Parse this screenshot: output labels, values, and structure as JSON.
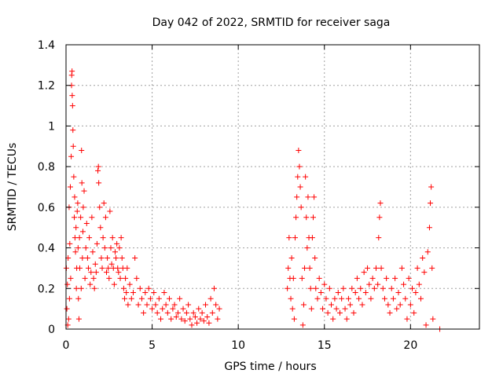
{
  "chart_data": {
    "type": "scatter",
    "title": "Day 042 of 2022, SRMTID for receiver saga",
    "xlabel": "GPS time / hours",
    "ylabel": "SRMTID / TECUs",
    "xlim": [
      0,
      24
    ],
    "ylim": [
      0,
      1.4
    ],
    "x_ticks": [
      0,
      5,
      10,
      15,
      20
    ],
    "x_tick_labels": [
      "0",
      "5",
      "10",
      "15",
      "20"
    ],
    "y_ticks": [
      0,
      0.2,
      0.4,
      0.6,
      0.8,
      1.0,
      1.2,
      1.4
    ],
    "y_tick_labels": [
      "0",
      "0.2",
      "0.4",
      "0.6",
      "0.8",
      "1",
      "1.2",
      "1.4"
    ],
    "grid": true,
    "marker": "+",
    "series": [
      {
        "name": "SRMTID",
        "color": "#ff0000",
        "points": [
          [
            0.02,
            0.3
          ],
          [
            0.05,
            0.1
          ],
          [
            0.08,
            0.22
          ],
          [
            0.1,
            0.02
          ],
          [
            0.12,
            0.35
          ],
          [
            0.15,
            0.05
          ],
          [
            0.18,
            0.6
          ],
          [
            0.2,
            0.15
          ],
          [
            0.22,
            0.42
          ],
          [
            0.25,
            0.7
          ],
          [
            0.27,
            0.25
          ],
          [
            0.3,
            0.85
          ],
          [
            0.32,
            1.2
          ],
          [
            0.33,
            1.25
          ],
          [
            0.35,
            1.27
          ],
          [
            0.36,
            1.15
          ],
          [
            0.38,
            1.1
          ],
          [
            0.4,
            0.98
          ],
          [
            0.42,
            0.9
          ],
          [
            0.45,
            0.75
          ],
          [
            0.48,
            0.55
          ],
          [
            0.5,
            0.65
          ],
          [
            0.52,
            0.45
          ],
          [
            0.55,
            0.38
          ],
          [
            0.58,
            0.5
          ],
          [
            0.6,
            0.2
          ],
          [
            0.62,
            0.3
          ],
          [
            0.65,
            0.58
          ],
          [
            0.68,
            0.62
          ],
          [
            0.7,
            0.4
          ],
          [
            0.72,
            0.15
          ],
          [
            0.75,
            0.05
          ],
          [
            0.78,
            0.45
          ],
          [
            0.8,
            0.3
          ],
          [
            0.85,
            0.55
          ],
          [
            0.88,
            0.2
          ],
          [
            0.9,
            0.88
          ],
          [
            0.92,
            0.72
          ],
          [
            0.95,
            0.35
          ],
          [
            0.98,
            0.48
          ],
          [
            1.0,
            0.6
          ],
          [
            1.05,
            0.68
          ],
          [
            1.1,
            0.25
          ],
          [
            1.15,
            0.4
          ],
          [
            1.2,
            0.52
          ],
          [
            1.25,
            0.35
          ],
          [
            1.3,
            0.3
          ],
          [
            1.35,
            0.45
          ],
          [
            1.4,
            0.22
          ],
          [
            1.45,
            0.28
          ],
          [
            1.5,
            0.55
          ],
          [
            1.55,
            0.38
          ],
          [
            1.6,
            0.25
          ],
          [
            1.65,
            0.2
          ],
          [
            1.7,
            0.32
          ],
          [
            1.75,
            0.28
          ],
          [
            1.8,
            0.42
          ],
          [
            1.85,
            0.78
          ],
          [
            1.88,
            0.8
          ],
          [
            1.9,
            0.72
          ],
          [
            1.95,
            0.6
          ],
          [
            2.0,
            0.5
          ],
          [
            2.05,
            0.35
          ],
          [
            2.1,
            0.3
          ],
          [
            2.15,
            0.45
          ],
          [
            2.2,
            0.62
          ],
          [
            2.25,
            0.4
          ],
          [
            2.3,
            0.55
          ],
          [
            2.35,
            0.28
          ],
          [
            2.4,
            0.35
          ],
          [
            2.45,
            0.3
          ],
          [
            2.5,
            0.25
          ],
          [
            2.55,
            0.58
          ],
          [
            2.6,
            0.4
          ],
          [
            2.65,
            0.32
          ],
          [
            2.7,
            0.45
          ],
          [
            2.75,
            0.3
          ],
          [
            2.8,
            0.22
          ],
          [
            2.85,
            0.38
          ],
          [
            2.9,
            0.35
          ],
          [
            2.95,
            0.42
          ],
          [
            3.0,
            0.3
          ],
          [
            3.05,
            0.28
          ],
          [
            3.1,
            0.4
          ],
          [
            3.15,
            0.25
          ],
          [
            3.2,
            0.45
          ],
          [
            3.25,
            0.35
          ],
          [
            3.3,
            0.3
          ],
          [
            3.35,
            0.2
          ],
          [
            3.4,
            0.15
          ],
          [
            3.45,
            0.25
          ],
          [
            3.5,
            0.18
          ],
          [
            3.55,
            0.3
          ],
          [
            3.6,
            0.12
          ],
          [
            3.7,
            0.22
          ],
          [
            3.8,
            0.15
          ],
          [
            3.9,
            0.18
          ],
          [
            4.0,
            0.35
          ],
          [
            4.1,
            0.25
          ],
          [
            4.2,
            0.12
          ],
          [
            4.3,
            0.2
          ],
          [
            4.4,
            0.15
          ],
          [
            4.5,
            0.08
          ],
          [
            4.6,
            0.18
          ],
          [
            4.7,
            0.12
          ],
          [
            4.8,
            0.2
          ],
          [
            4.9,
            0.15
          ],
          [
            5.0,
            0.1
          ],
          [
            5.1,
            0.18
          ],
          [
            5.2,
            0.12
          ],
          [
            5.3,
            0.08
          ],
          [
            5.4,
            0.15
          ],
          [
            5.5,
            0.05
          ],
          [
            5.6,
            0.1
          ],
          [
            5.7,
            0.18
          ],
          [
            5.8,
            0.12
          ],
          [
            5.9,
            0.08
          ],
          [
            6.0,
            0.15
          ],
          [
            6.1,
            0.05
          ],
          [
            6.2,
            0.1
          ],
          [
            6.3,
            0.12
          ],
          [
            6.4,
            0.06
          ],
          [
            6.5,
            0.08
          ],
          [
            6.6,
            0.15
          ],
          [
            6.7,
            0.05
          ],
          [
            6.8,
            0.1
          ],
          [
            6.9,
            0.04
          ],
          [
            7.0,
            0.08
          ],
          [
            7.1,
            0.12
          ],
          [
            7.2,
            0.05
          ],
          [
            7.3,
            0.02
          ],
          [
            7.4,
            0.08
          ],
          [
            7.5,
            0.06
          ],
          [
            7.6,
            0.03
          ],
          [
            7.7,
            0.1
          ],
          [
            7.8,
            0.05
          ],
          [
            7.9,
            0.08
          ],
          [
            8.0,
            0.04
          ],
          [
            8.1,
            0.12
          ],
          [
            8.2,
            0.06
          ],
          [
            8.3,
            0.03
          ],
          [
            8.4,
            0.15
          ],
          [
            8.5,
            0.08
          ],
          [
            8.6,
            0.2
          ],
          [
            8.7,
            0.12
          ],
          [
            8.8,
            0.05
          ],
          [
            8.9,
            0.1
          ],
          [
            12.85,
            0.2
          ],
          [
            12.9,
            0.3
          ],
          [
            12.95,
            0.45
          ],
          [
            13.0,
            0.25
          ],
          [
            13.05,
            0.15
          ],
          [
            13.1,
            0.35
          ],
          [
            13.15,
            0.1
          ],
          [
            13.2,
            0.25
          ],
          [
            13.25,
            0.05
          ],
          [
            13.3,
            0.45
          ],
          [
            13.35,
            0.55
          ],
          [
            13.4,
            0.65
          ],
          [
            13.45,
            0.75
          ],
          [
            13.5,
            0.88
          ],
          [
            13.55,
            0.8
          ],
          [
            13.6,
            0.7
          ],
          [
            13.65,
            0.6
          ],
          [
            13.7,
            0.25
          ],
          [
            13.75,
            0.02
          ],
          [
            13.8,
            0.12
          ],
          [
            13.85,
            0.3
          ],
          [
            13.9,
            0.75
          ],
          [
            13.95,
            0.55
          ],
          [
            14.0,
            0.4
          ],
          [
            14.05,
            0.65
          ],
          [
            14.1,
            0.45
          ],
          [
            14.15,
            0.3
          ],
          [
            14.2,
            0.2
          ],
          [
            14.25,
            0.1
          ],
          [
            14.3,
            0.45
          ],
          [
            14.35,
            0.55
          ],
          [
            14.4,
            0.65
          ],
          [
            14.45,
            0.35
          ],
          [
            14.5,
            0.2
          ],
          [
            14.6,
            0.15
          ],
          [
            14.7,
            0.25
          ],
          [
            14.8,
            0.18
          ],
          [
            14.9,
            0.1
          ],
          [
            15.0,
            0.22
          ],
          [
            15.1,
            0.15
          ],
          [
            15.2,
            0.08
          ],
          [
            15.3,
            0.2
          ],
          [
            15.4,
            0.12
          ],
          [
            15.5,
            0.05
          ],
          [
            15.6,
            0.15
          ],
          [
            15.7,
            0.1
          ],
          [
            15.8,
            0.18
          ],
          [
            15.9,
            0.08
          ],
          [
            16.0,
            0.15
          ],
          [
            16.1,
            0.2
          ],
          [
            16.2,
            0.1
          ],
          [
            16.3,
            0.05
          ],
          [
            16.4,
            0.15
          ],
          [
            16.5,
            0.12
          ],
          [
            16.6,
            0.2
          ],
          [
            16.7,
            0.08
          ],
          [
            16.8,
            0.18
          ],
          [
            16.9,
            0.25
          ],
          [
            17.0,
            0.15
          ],
          [
            17.1,
            0.2
          ],
          [
            17.2,
            0.12
          ],
          [
            17.3,
            0.28
          ],
          [
            17.4,
            0.18
          ],
          [
            17.5,
            0.3
          ],
          [
            17.6,
            0.22
          ],
          [
            17.7,
            0.15
          ],
          [
            17.8,
            0.25
          ],
          [
            17.9,
            0.2
          ],
          [
            18.0,
            0.3
          ],
          [
            18.1,
            0.22
          ],
          [
            18.15,
            0.45
          ],
          [
            18.2,
            0.55
          ],
          [
            18.25,
            0.62
          ],
          [
            18.3,
            0.3
          ],
          [
            18.4,
            0.2
          ],
          [
            18.5,
            0.15
          ],
          [
            18.6,
            0.25
          ],
          [
            18.7,
            0.12
          ],
          [
            18.8,
            0.08
          ],
          [
            18.9,
            0.2
          ],
          [
            19.0,
            0.15
          ],
          [
            19.1,
            0.25
          ],
          [
            19.2,
            0.1
          ],
          [
            19.3,
            0.18
          ],
          [
            19.4,
            0.12
          ],
          [
            19.5,
            0.3
          ],
          [
            19.6,
            0.22
          ],
          [
            19.7,
            0.15
          ],
          [
            19.8,
            0.05
          ],
          [
            19.9,
            0.25
          ],
          [
            20.0,
            0.12
          ],
          [
            20.1,
            0.2
          ],
          [
            20.2,
            0.08
          ],
          [
            20.3,
            0.18
          ],
          [
            20.4,
            0.3
          ],
          [
            20.5,
            0.22
          ],
          [
            20.6,
            0.15
          ],
          [
            20.7,
            0.35
          ],
          [
            20.8,
            0.28
          ],
          [
            20.9,
            0.02
          ],
          [
            21.0,
            0.38
          ],
          [
            21.1,
            0.5
          ],
          [
            21.15,
            0.62
          ],
          [
            21.2,
            0.7
          ],
          [
            21.25,
            0.3
          ],
          [
            21.3,
            0.05
          ],
          [
            21.7,
            0.0
          ]
        ]
      }
    ]
  }
}
